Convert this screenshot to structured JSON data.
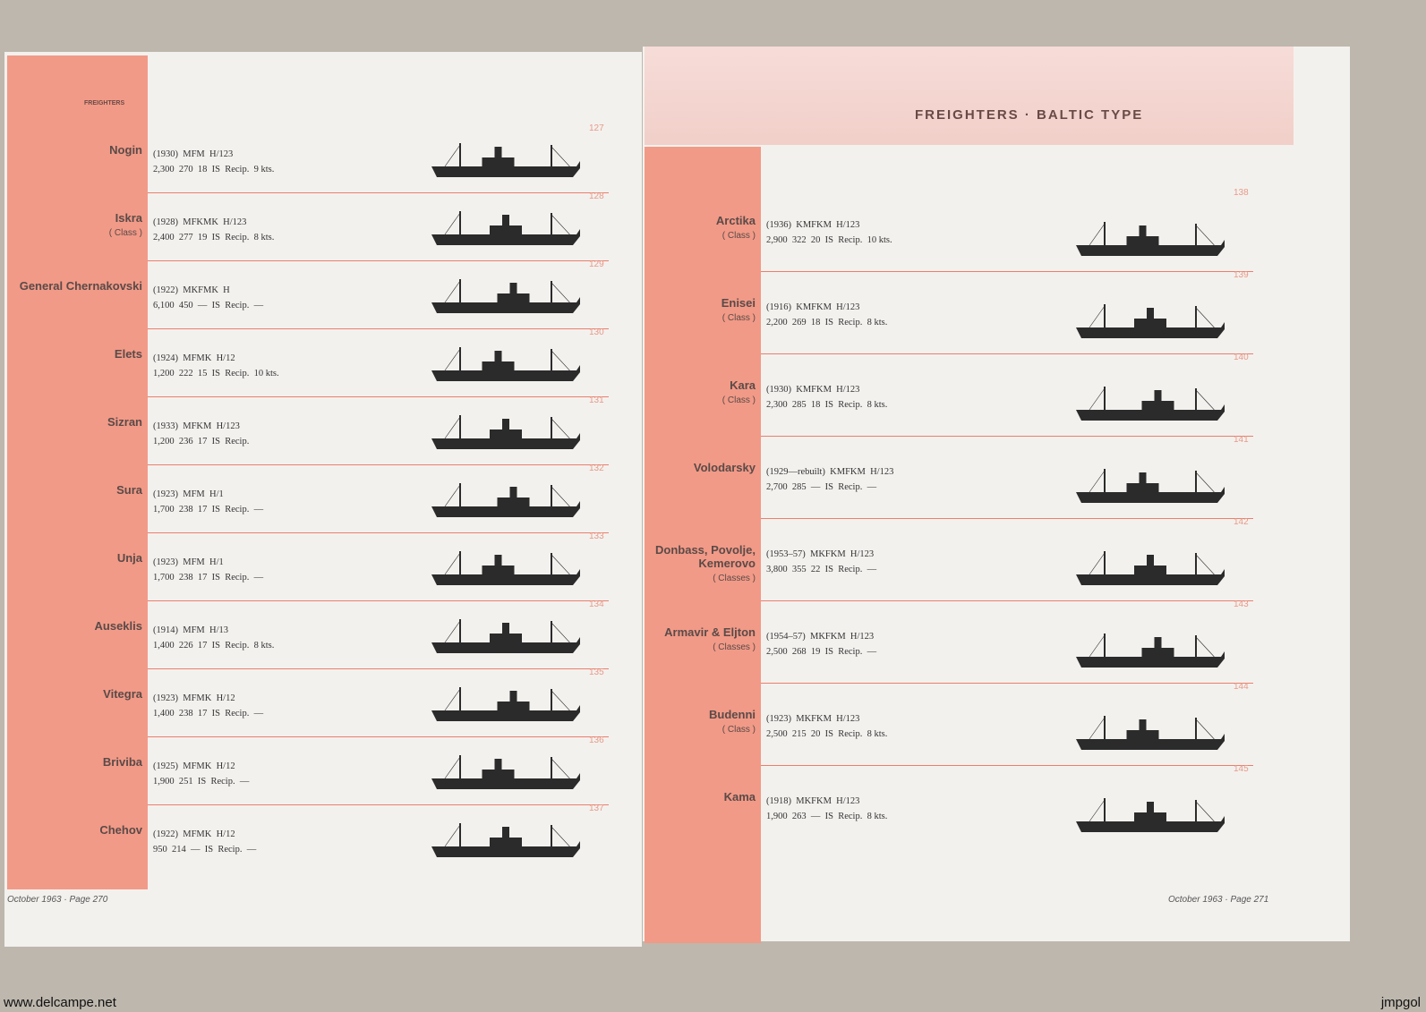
{
  "left_page": {
    "header": "FREIGHTERS",
    "footer": "October 1963 · Page 270",
    "entries": [
      {
        "number": "127",
        "name": "Nogin",
        "line1": "(1930)  MFM  H/123",
        "line2": "2,300  270  18  IS  Recip.  9 kts."
      },
      {
        "number": "128",
        "name": "Iskra",
        "class": "( Class )",
        "line1": "(1928)  MFKMK  H/123",
        "line2": "2,400  277  19  IS  Recip.  8 kts."
      },
      {
        "number": "129",
        "name": "General Chernakovski",
        "line1": "(1922)  MKFMK  H",
        "line2": "6,100  450  —  IS  Recip.  —"
      },
      {
        "number": "130",
        "name": "Elets",
        "line1": "(1924)  MFMK  H/12",
        "line2": "1,200  222  15  IS  Recip.  10 kts."
      },
      {
        "number": "131",
        "name": "Sizran",
        "line1": "(1933)  MFKM  H/123",
        "line2": "1,200  236  17  IS  Recip."
      },
      {
        "number": "132",
        "name": "Sura",
        "line1": "(1923)  MFM  H/1",
        "line2": "1,700  238  17  IS  Recip.  —"
      },
      {
        "number": "133",
        "name": "Unja",
        "line1": "(1923)  MFM  H/1",
        "line2": "1,700  238  17  IS  Recip.  —"
      },
      {
        "number": "134",
        "name": "Auseklis",
        "line1": "(1914)  MFM  H/13",
        "line2": "1,400  226  17  IS  Recip.  8 kts."
      },
      {
        "number": "135",
        "name": "Vitegra",
        "line1": "(1923)  MFMK  H/12",
        "line2": "1,400  238  17  IS  Recip.  —"
      },
      {
        "number": "136",
        "name": "Briviba",
        "line1": "(1925)  MFMK  H/12",
        "line2": "1,900  251  IS  Recip.  —"
      },
      {
        "number": "137",
        "name": "Chehov",
        "line1": "(1922)  MFMK  H/12",
        "line2": "950  214  —  IS  Recip.  —"
      }
    ]
  },
  "right_page": {
    "header": "FREIGHTERS · BALTIC TYPE",
    "footer": "October 1963 · Page 271",
    "entries": [
      {
        "number": "138",
        "name": "Arctika",
        "class": "( Class )",
        "line1": "(1936)  KMFKM  H/123",
        "line2": "2,900  322  20  IS  Recip.  10 kts."
      },
      {
        "number": "139",
        "name": "Enisei",
        "class": "( Class )",
        "line1": "(1916)  KMFKM  H/123",
        "line2": "2,200  269  18  IS  Recip.  8 kts."
      },
      {
        "number": "140",
        "name": "Kara",
        "class": "( Class )",
        "line1": "(1930)  KMFKM  H/123",
        "line2": "2,300  285  18  IS  Recip.  8 kts."
      },
      {
        "number": "141",
        "name": "Volodarsky",
        "line1": "(1929—rebuilt)  KMFKM  H/123",
        "line2": "2,700  285  —  IS  Recip.  —"
      },
      {
        "number": "142",
        "name": "Donbass, Povolje, Kemerovo",
        "class": "( Classes )",
        "line1": "(1953–57)  MKFKM  H/123",
        "line2": "3,800  355  22  IS  Recip.  —"
      },
      {
        "number": "143",
        "name": "Armavir & Eljton",
        "class": "( Classes )",
        "line1": "(1954–57)  MKFKM  H/123",
        "line2": "2,500  268  19  IS  Recip.  —"
      },
      {
        "number": "144",
        "name": "Budenni",
        "class": "( Class )",
        "line1": "(1923)  MKFKM  H/123",
        "line2": "2,500  215  20  IS  Recip.  8 kts."
      },
      {
        "number": "145",
        "name": "Kama",
        "line1": "(1918)  MKFKM  H/123",
        "line2": "1,900  263  —  IS  Recip.  8 kts."
      }
    ]
  },
  "watermark_left": "www.delcampe.net",
  "watermark_right": "jmpgol"
}
